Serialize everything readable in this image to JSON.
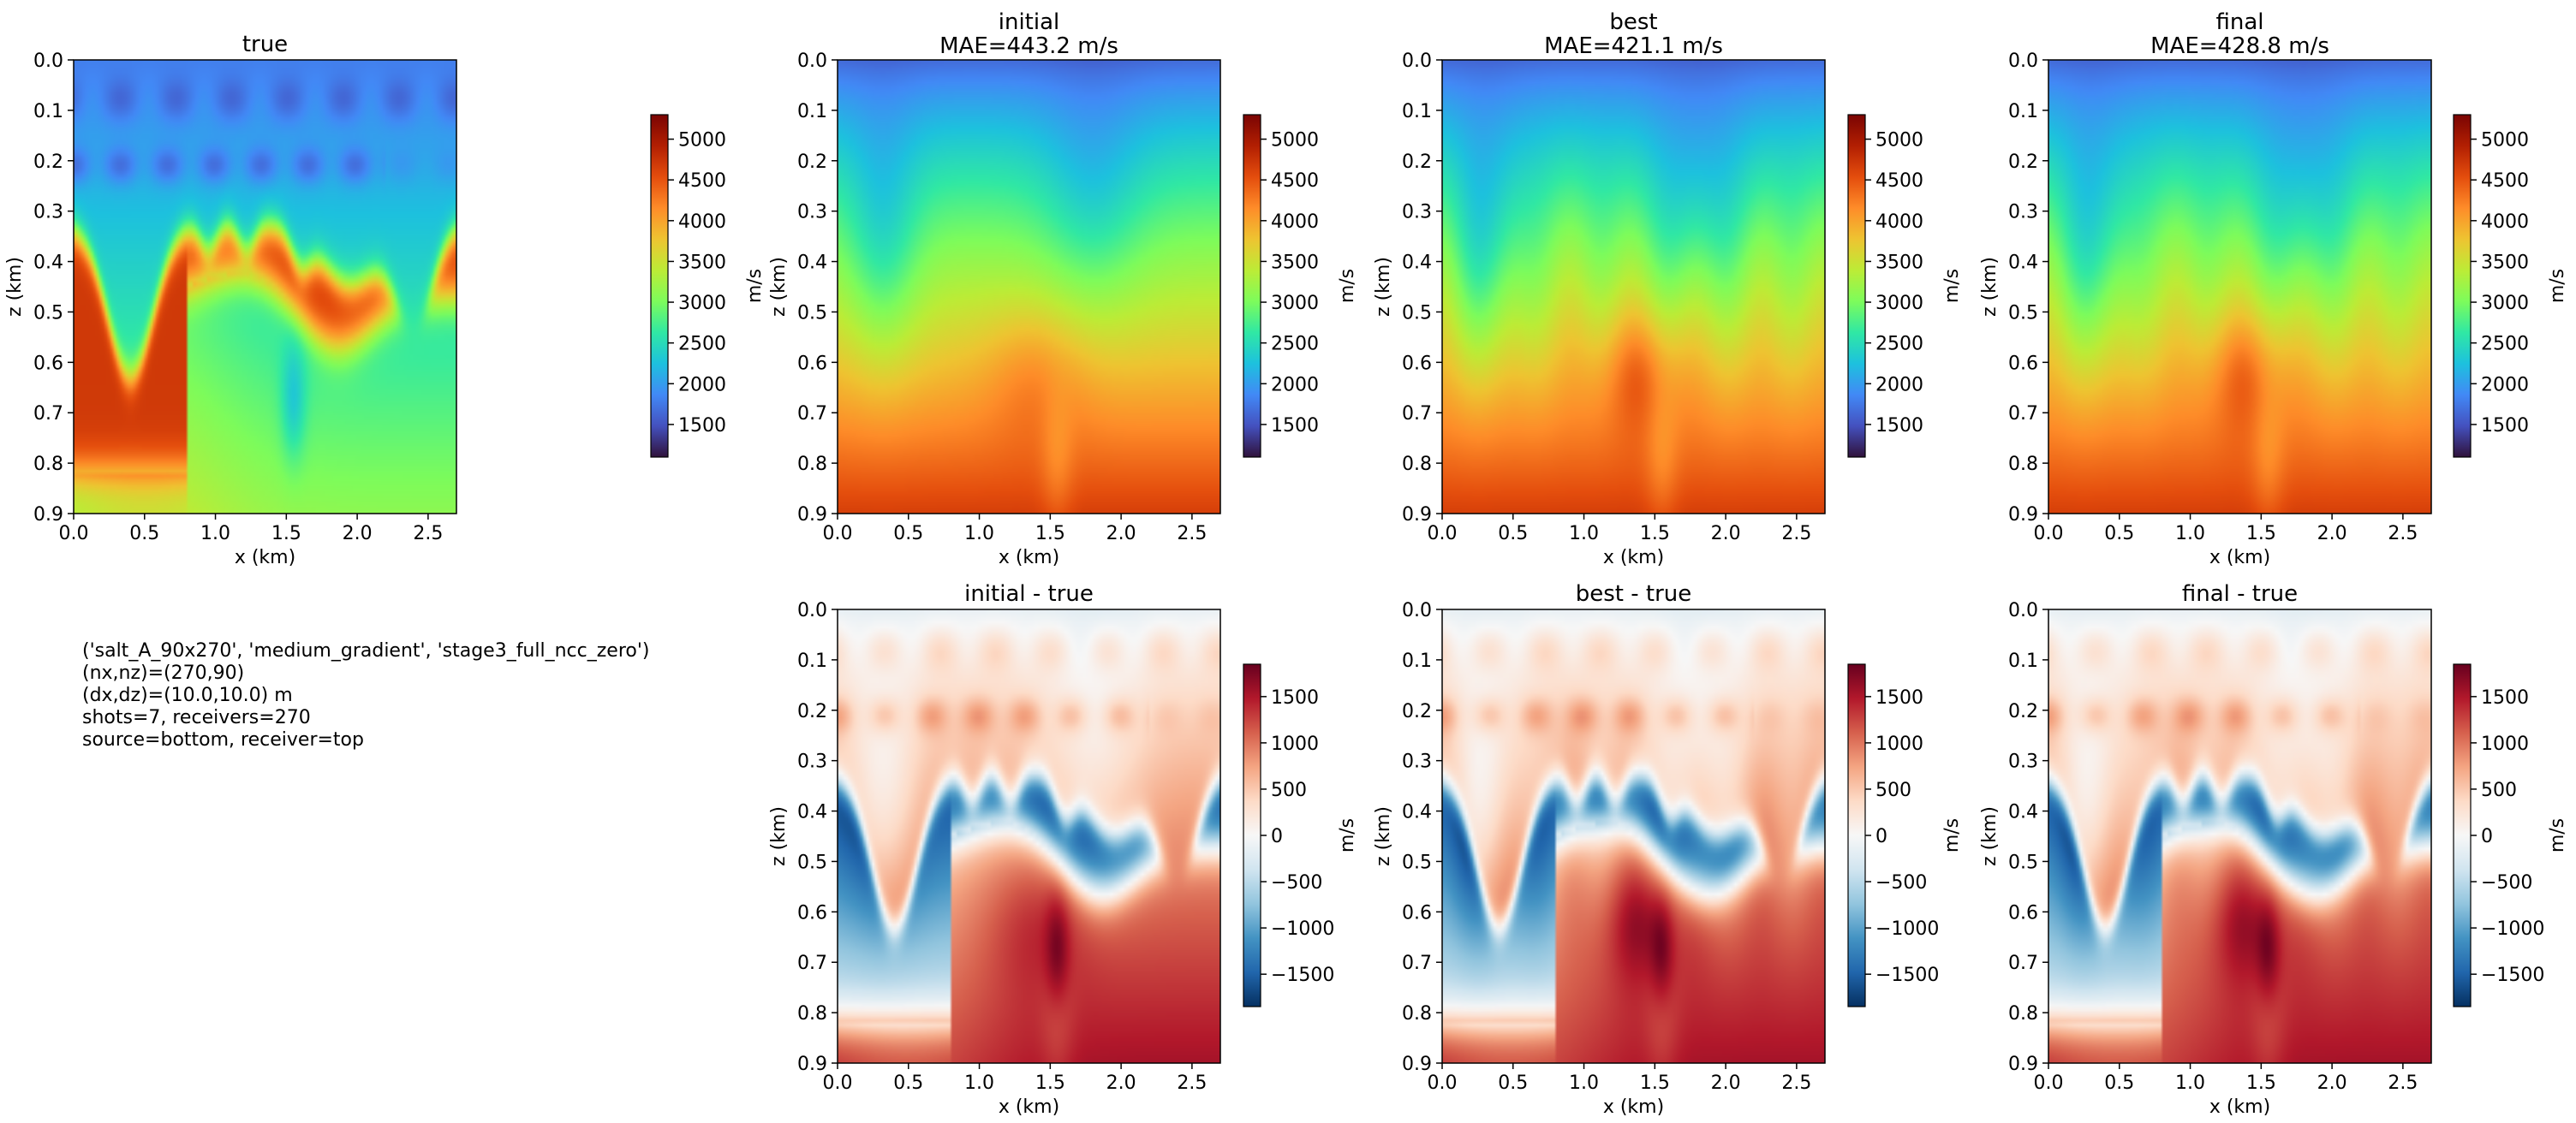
{
  "chart_data": [
    {
      "type": "heatmap",
      "title": "true",
      "subtitle": "",
      "xlabel": "x (km)",
      "ylabel": "z (km)",
      "xlim": [
        0,
        2.7
      ],
      "ylim": [
        0.9,
        0
      ],
      "xticks": [
        "0.0",
        "0.5",
        "1.0",
        "1.5",
        "2.0",
        "2.5"
      ],
      "yticks": [
        "0.0",
        "0.1",
        "0.2",
        "0.3",
        "0.4",
        "0.5",
        "0.6",
        "0.7",
        "0.8",
        "0.9"
      ],
      "colorbar": {
        "label": "m/s",
        "colormap": "turbo",
        "range": [
          1100,
          5300
        ],
        "ticks": [
          "1500",
          "2000",
          "2500",
          "3000",
          "3500",
          "4000",
          "4500",
          "5000"
        ]
      },
      "field": "true"
    },
    {
      "type": "heatmap",
      "title": "initial",
      "subtitle": "MAE=443.2 m/s",
      "mae": 443.2,
      "xlabel": "x (km)",
      "ylabel": "z (km)",
      "xlim": [
        0,
        2.7
      ],
      "ylim": [
        0.9,
        0
      ],
      "xticks": [
        "0.0",
        "0.5",
        "1.0",
        "1.5",
        "2.0",
        "2.5"
      ],
      "yticks": [
        "0.0",
        "0.1",
        "0.2",
        "0.3",
        "0.4",
        "0.5",
        "0.6",
        "0.7",
        "0.8",
        "0.9"
      ],
      "colorbar": {
        "label": "m/s",
        "colormap": "turbo",
        "range": [
          1100,
          5300
        ],
        "ticks": [
          "1500",
          "2000",
          "2500",
          "3000",
          "3500",
          "4000",
          "4500",
          "5000"
        ]
      },
      "field": "initial"
    },
    {
      "type": "heatmap",
      "title": "best",
      "subtitle": "MAE=421.1 m/s",
      "mae": 421.1,
      "xlabel": "x (km)",
      "ylabel": "z (km)",
      "xlim": [
        0,
        2.7
      ],
      "ylim": [
        0.9,
        0
      ],
      "xticks": [
        "0.0",
        "0.5",
        "1.0",
        "1.5",
        "2.0",
        "2.5"
      ],
      "yticks": [
        "0.0",
        "0.1",
        "0.2",
        "0.3",
        "0.4",
        "0.5",
        "0.6",
        "0.7",
        "0.8",
        "0.9"
      ],
      "colorbar": {
        "label": "m/s",
        "colormap": "turbo",
        "range": [
          1100,
          5300
        ],
        "ticks": [
          "1500",
          "2000",
          "2500",
          "3000",
          "3500",
          "4000",
          "4500",
          "5000"
        ]
      },
      "field": "best"
    },
    {
      "type": "heatmap",
      "title": "final",
      "subtitle": "MAE=428.8 m/s",
      "mae": 428.8,
      "xlabel": "x (km)",
      "ylabel": "z (km)",
      "xlim": [
        0,
        2.7
      ],
      "ylim": [
        0.9,
        0
      ],
      "xticks": [
        "0.0",
        "0.5",
        "1.0",
        "1.5",
        "2.0",
        "2.5"
      ],
      "yticks": [
        "0.0",
        "0.1",
        "0.2",
        "0.3",
        "0.4",
        "0.5",
        "0.6",
        "0.7",
        "0.8",
        "0.9"
      ],
      "colorbar": {
        "label": "m/s",
        "colormap": "turbo",
        "range": [
          1100,
          5300
        ],
        "ticks": [
          "1500",
          "2000",
          "2500",
          "3000",
          "3500",
          "4000",
          "4500",
          "5000"
        ]
      },
      "field": "final"
    },
    {
      "type": "heatmap",
      "title": "initial - true",
      "subtitle": "",
      "xlabel": "x (km)",
      "ylabel": "z (km)",
      "xlim": [
        0,
        2.7
      ],
      "ylim": [
        0.9,
        0
      ],
      "xticks": [
        "0.0",
        "0.5",
        "1.0",
        "1.5",
        "2.0",
        "2.5"
      ],
      "yticks": [
        "0.0",
        "0.1",
        "0.2",
        "0.3",
        "0.4",
        "0.5",
        "0.6",
        "0.7",
        "0.8",
        "0.9"
      ],
      "colorbar": {
        "label": "m/s",
        "colormap": "RdBu_r",
        "range": [
          -1850,
          1850
        ],
        "ticks": [
          "1500",
          "1000",
          "500",
          "0",
          "−500",
          "−1000",
          "−1500"
        ]
      },
      "field": "diff_initial"
    },
    {
      "type": "heatmap",
      "title": "best - true",
      "subtitle": "",
      "xlabel": "x (km)",
      "ylabel": "z (km)",
      "xlim": [
        0,
        2.7
      ],
      "ylim": [
        0.9,
        0
      ],
      "xticks": [
        "0.0",
        "0.5",
        "1.0",
        "1.5",
        "2.0",
        "2.5"
      ],
      "yticks": [
        "0.0",
        "0.1",
        "0.2",
        "0.3",
        "0.4",
        "0.5",
        "0.6",
        "0.7",
        "0.8",
        "0.9"
      ],
      "colorbar": {
        "label": "m/s",
        "colormap": "RdBu_r",
        "range": [
          -1850,
          1850
        ],
        "ticks": [
          "1500",
          "1000",
          "500",
          "0",
          "−500",
          "−1000",
          "−1500"
        ]
      },
      "field": "diff_best"
    },
    {
      "type": "heatmap",
      "title": "final - true",
      "subtitle": "",
      "xlabel": "x (km)",
      "ylabel": "z (km)",
      "xlim": [
        0,
        2.7
      ],
      "ylim": [
        0.9,
        0
      ],
      "xticks": [
        "0.0",
        "0.5",
        "1.0",
        "1.5",
        "2.0",
        "2.5"
      ],
      "yticks": [
        "0.0",
        "0.1",
        "0.2",
        "0.3",
        "0.4",
        "0.5",
        "0.6",
        "0.7",
        "0.8",
        "0.9"
      ],
      "colorbar": {
        "label": "m/s",
        "colormap": "RdBu_r",
        "range": [
          -1850,
          1850
        ],
        "ticks": [
          "1500",
          "1000",
          "500",
          "0",
          "−500",
          "−1000",
          "−1500"
        ]
      },
      "field": "diff_final"
    }
  ],
  "info": {
    "lines": [
      "('salt_A_90x270', 'medium_gradient', 'stage3_full_ncc_zero')",
      "(nx,nz)=(270,90)",
      "(dx,dz)=(10.0,10.0) m",
      "shots=7, receivers=270",
      "source=bottom, receiver=top"
    ]
  }
}
